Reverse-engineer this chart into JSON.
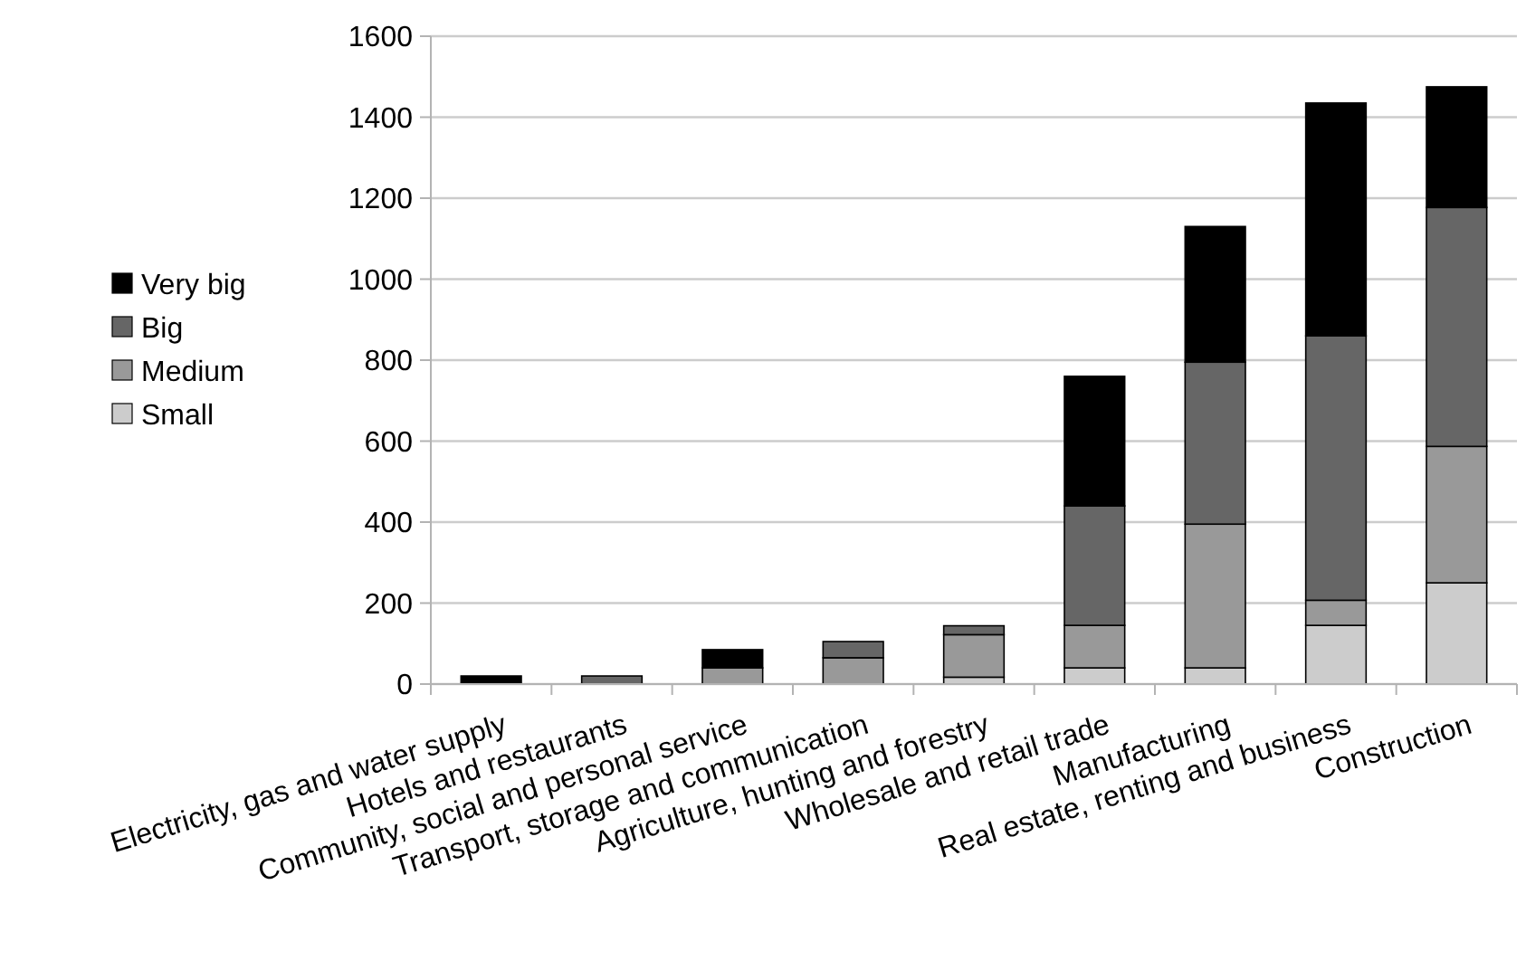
{
  "chart_data": {
    "type": "bar",
    "stacked": true,
    "categories": [
      "Electricity, gas and water supply",
      "Hotels and restaurants",
      "Community, social and personal service",
      "Transport, storage and communication",
      "Agriculture, hunting and forestry",
      "Wholesale and retail trade",
      "Manufacturing",
      "Real estate, renting and business",
      "Construction"
    ],
    "series": [
      {
        "name": "Small",
        "color": "#cccccc",
        "values": [
          0,
          0,
          0,
          0,
          17,
          40,
          40,
          145,
          250
        ]
      },
      {
        "name": "Medium",
        "color": "#999999",
        "values": [
          0,
          0,
          40,
          65,
          105,
          105,
          355,
          62,
          337
        ]
      },
      {
        "name": "Big",
        "color": "#666666",
        "values": [
          0,
          20,
          0,
          40,
          22,
          295,
          400,
          653,
          590
        ]
      },
      {
        "name": "Very big",
        "color": "#000000",
        "values": [
          20,
          0,
          45,
          0,
          0,
          320,
          335,
          575,
          298
        ]
      }
    ],
    "ylim": [
      0,
      1600
    ],
    "yticks": [
      0,
      200,
      400,
      600,
      800,
      1000,
      1200,
      1400,
      1600
    ],
    "grid": "y",
    "legend": "left"
  }
}
